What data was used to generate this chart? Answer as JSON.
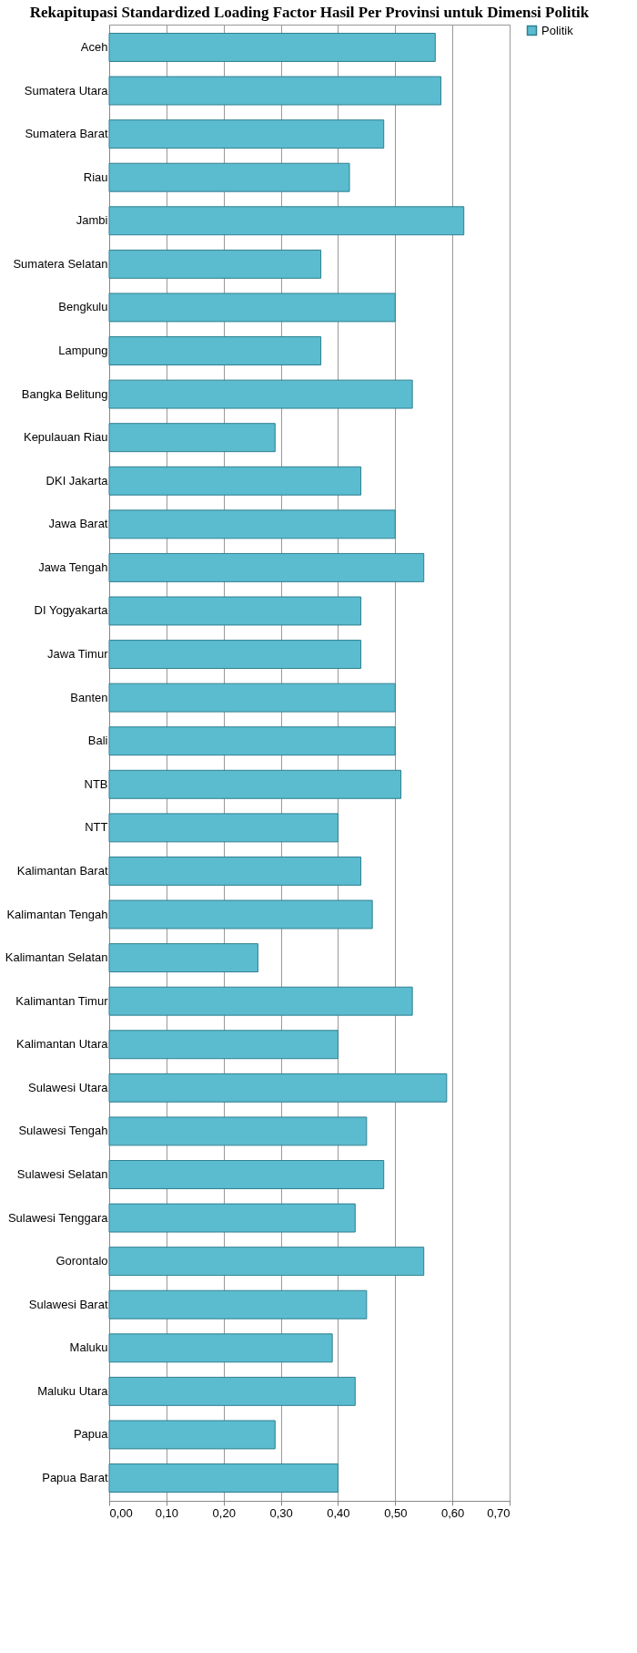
{
  "chart_data": {
    "type": "bar",
    "orientation": "horizontal",
    "title": "Rekapitupasi Standardized Loading Factor Hasil Per Provinsi untuk Dimensi Politik",
    "categories": [
      "Aceh",
      "Sumatera Utara",
      "Sumatera Barat",
      "Riau",
      "Jambi",
      "Sumatera Selatan",
      "Bengkulu",
      "Lampung",
      "Bangka Belitung",
      "Kepulauan Riau",
      "DKI Jakarta",
      "Jawa Barat",
      "Jawa Tengah",
      "DI Yogyakarta",
      "Jawa Timur",
      "Banten",
      "Bali",
      "NTB",
      "NTT",
      "Kalimantan Barat",
      "Kalimantan Tengah",
      "Kalimantan Selatan",
      "Kalimantan Timur",
      "Kalimantan Utara",
      "Sulawesi Utara",
      "Sulawesi Tengah",
      "Sulawesi Selatan",
      "Sulawesi Tenggara",
      "Gorontalo",
      "Sulawesi Barat",
      "Maluku",
      "Maluku Utara",
      "Papua",
      "Papua Barat"
    ],
    "series": [
      {
        "name": "Politik",
        "color": "#5bbcd0",
        "values": [
          0.57,
          0.58,
          0.48,
          0.42,
          0.62,
          0.37,
          0.5,
          0.37,
          0.53,
          0.29,
          0.44,
          0.5,
          0.55,
          0.44,
          0.44,
          0.5,
          0.5,
          0.51,
          0.4,
          0.44,
          0.46,
          0.26,
          0.53,
          0.4,
          0.59,
          0.45,
          0.48,
          0.43,
          0.55,
          0.45,
          0.39,
          0.43,
          0.29,
          0.4
        ]
      }
    ],
    "xlim": [
      0,
      0.7
    ],
    "xticks": [
      {
        "value": 0,
        "label": "0,00"
      },
      {
        "value": 0.1,
        "label": "0,10"
      },
      {
        "value": 0.2,
        "label": "0,20"
      },
      {
        "value": 0.3,
        "label": "0,30"
      },
      {
        "value": 0.4,
        "label": "0,40"
      },
      {
        "value": 0.5,
        "label": "0,50"
      },
      {
        "value": 0.6,
        "label": "0,60"
      },
      {
        "value": 0.7,
        "label": "0,70"
      }
    ],
    "grid": "x",
    "legend": "right"
  }
}
